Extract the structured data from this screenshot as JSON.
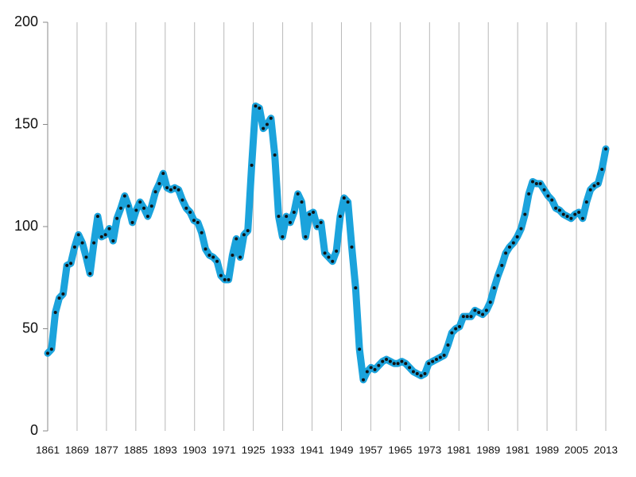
{
  "chart_data": {
    "type": "line",
    "x_labels": [
      "1861",
      "1869",
      "1877",
      "1885",
      "1893",
      "1903",
      "1971",
      "1925",
      "1933",
      "1941",
      "1949",
      "1957",
      "1965",
      "1973",
      "1981",
      "1989",
      "1981",
      "1989",
      "2005",
      "2013"
    ],
    "series": [
      {
        "color": "#1ba3dc",
        "marker_color": "#111111",
        "values": [
          38,
          40,
          58,
          65,
          67,
          81,
          82,
          90,
          96,
          92,
          85,
          77,
          92,
          105,
          95,
          96,
          99,
          93,
          104,
          109,
          115,
          110,
          102,
          108,
          112,
          109,
          105,
          110,
          117,
          121,
          126,
          119,
          118,
          119,
          118,
          113,
          109,
          107,
          103,
          102,
          97,
          89,
          86,
          85,
          83,
          76,
          74,
          74,
          86,
          94,
          85,
          96,
          98,
          130,
          159,
          158,
          148,
          150,
          153,
          135,
          105,
          95,
          105,
          102,
          107,
          116,
          112,
          95,
          106,
          107,
          100,
          102,
          87,
          85,
          83,
          88,
          105,
          114,
          112,
          90,
          70,
          40,
          25,
          29,
          31,
          30,
          32,
          34,
          35,
          34,
          33,
          33,
          34,
          33,
          31,
          29,
          28,
          27,
          28,
          33,
          34,
          35,
          36,
          37,
          42,
          48,
          50,
          51,
          56,
          56,
          56,
          59,
          58,
          57,
          59,
          63,
          70,
          76,
          81,
          87,
          90,
          92,
          95,
          99,
          106,
          116,
          122,
          121,
          121,
          118,
          115,
          113,
          109,
          108,
          106,
          105,
          104,
          106,
          107,
          104,
          112,
          118,
          120,
          121,
          128,
          138
        ]
      }
    ],
    "ylim": [
      0,
      200
    ],
    "yticks": [
      0,
      50,
      100,
      150,
      200
    ],
    "grid": "x"
  }
}
